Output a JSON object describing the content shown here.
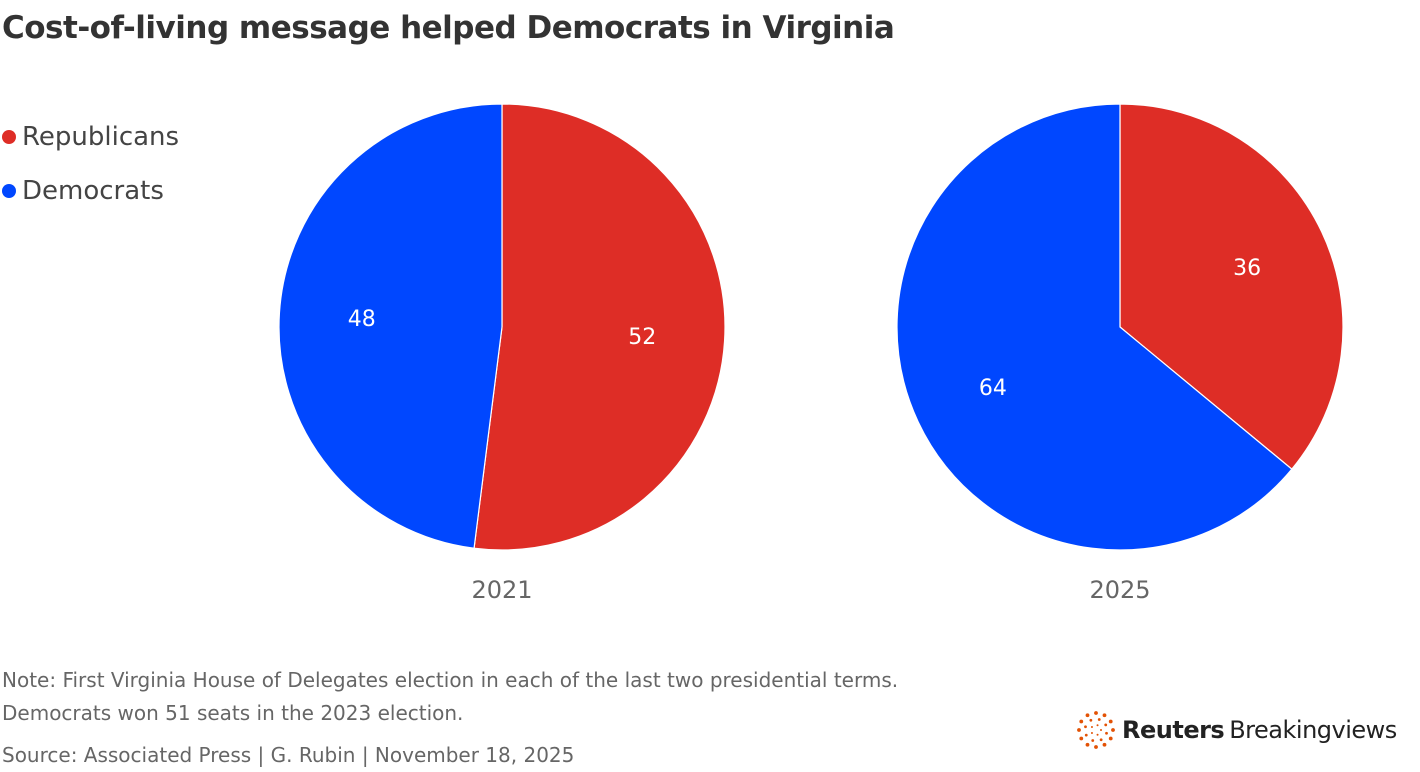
{
  "title": "Cost-of-living message helped Democrats in Virginia",
  "legend": [
    {
      "label": "Republicans",
      "color": "#de2d26"
    },
    {
      "label": "Democrats",
      "color": "#0047ff"
    }
  ],
  "chart_data": [
    {
      "type": "pie",
      "label": "2021",
      "slices": [
        {
          "name": "Republicans",
          "value": 52,
          "color": "#de2d26"
        },
        {
          "name": "Democrats",
          "value": 48,
          "color": "#0047ff"
        }
      ]
    },
    {
      "type": "pie",
      "label": "2025",
      "slices": [
        {
          "name": "Republicans",
          "value": 36,
          "color": "#de2d26"
        },
        {
          "name": "Democrats",
          "value": 64,
          "color": "#0047ff"
        }
      ]
    }
  ],
  "footer": {
    "note1": "Note: First Virginia House of Delegates election in each of the last two presidential terms.",
    "note2": "Democrats won 51 seats in the 2023 election.",
    "source": "Source: Associated Press | G. Rubin | November 18, 2025"
  },
  "logo": {
    "brand": "Reuters",
    "product": "Breakingviews",
    "color": "#e35205"
  }
}
